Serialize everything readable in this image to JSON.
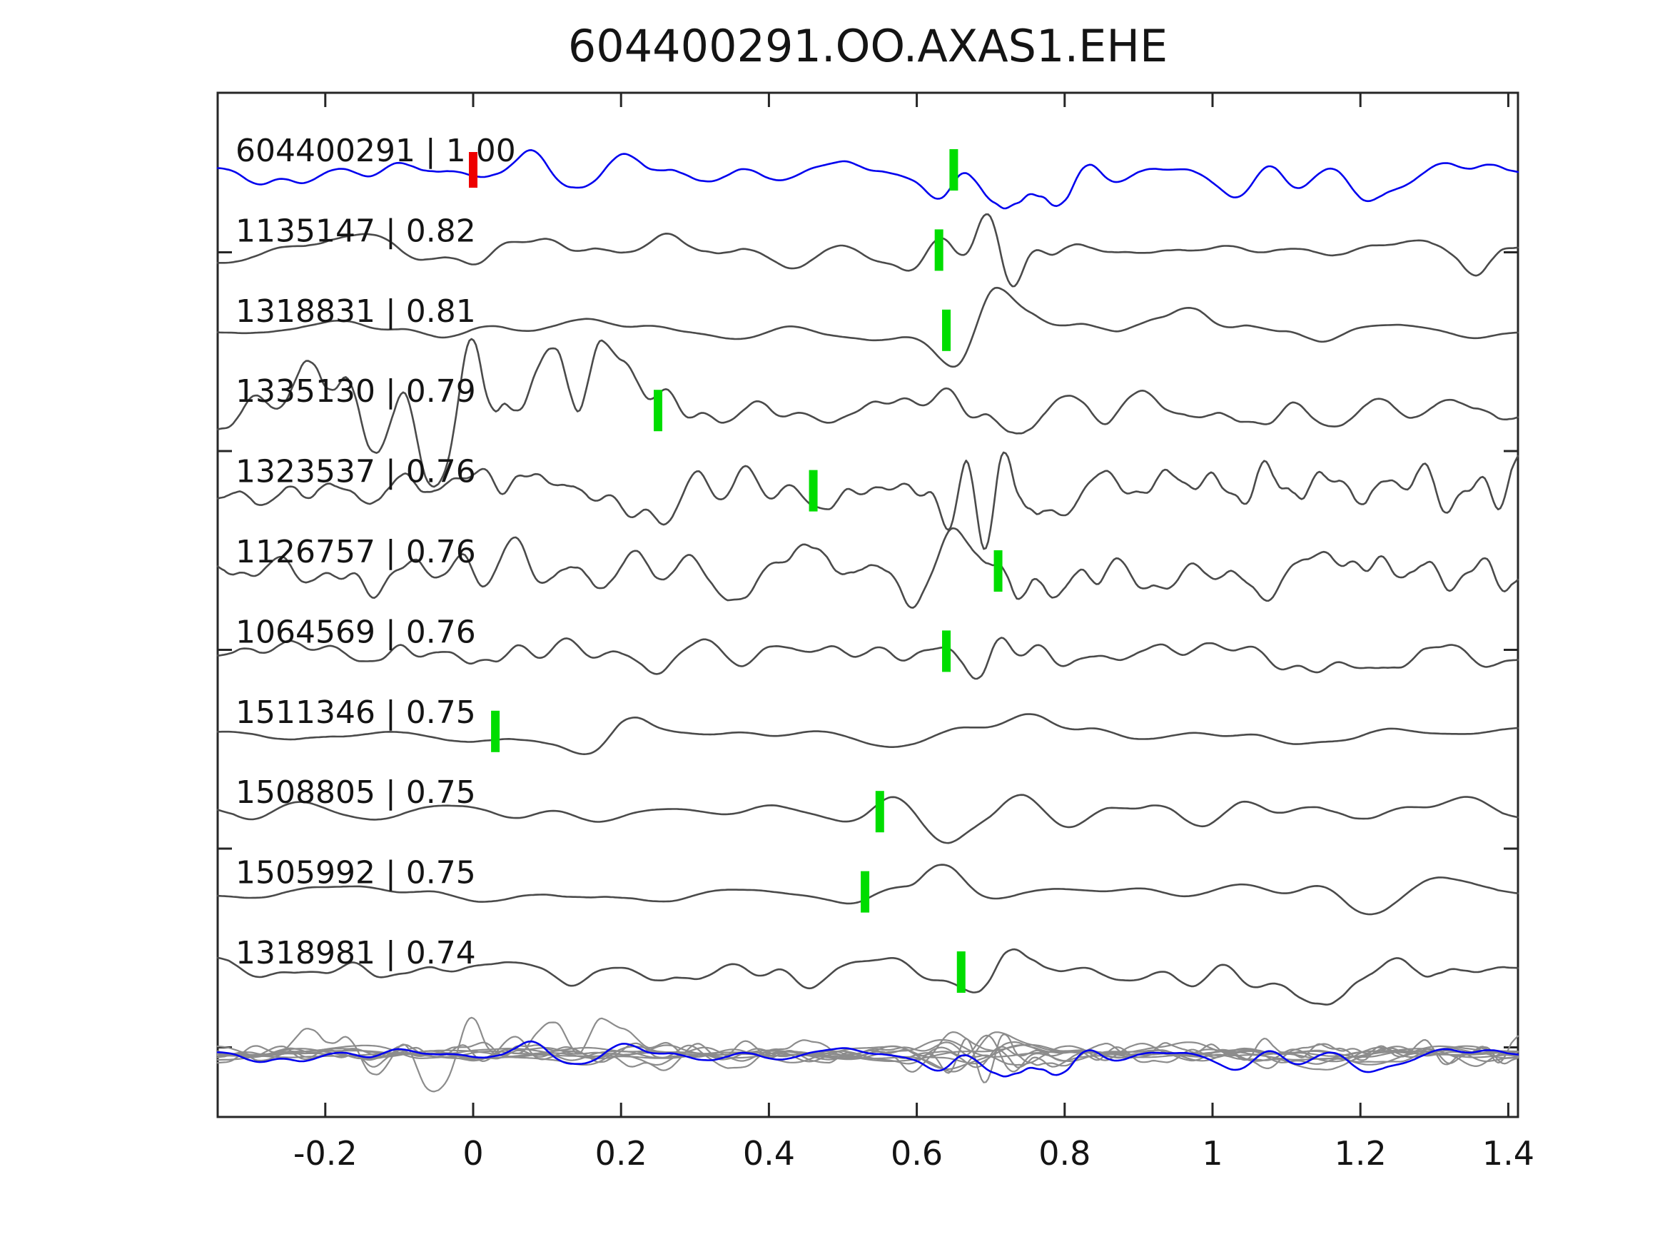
{
  "figure": {
    "title": "604400291.OO.AXAS1.EHE"
  },
  "chart_data": {
    "type": "line",
    "title": "604400291.OO.AXAS1.EHE",
    "xlabel": "",
    "ylabel": "",
    "xlim": [
      -0.345,
      1.413
    ],
    "grid": false,
    "legend": "none",
    "xticks": [
      {
        "value": -0.2,
        "label": "-0.2"
      },
      {
        "value": 0.0,
        "label": "0"
      },
      {
        "value": 0.2,
        "label": "0.2"
      },
      {
        "value": 0.4,
        "label": "0.4"
      },
      {
        "value": 0.6,
        "label": "0.6"
      },
      {
        "value": 0.8,
        "label": "0.8"
      },
      {
        "value": 1.0,
        "label": "1"
      },
      {
        "value": 1.2,
        "label": "1.2"
      },
      {
        "value": 1.4,
        "label": "1.4"
      }
    ],
    "colors": {
      "reference_trace": "#0202ee",
      "match_trace": "#4a4a4a",
      "overlay_trace": "#8c8c8c",
      "pick_marker": "#00dd00",
      "reference_marker": "#ee0000",
      "axis": "#262626",
      "text": "#141414"
    },
    "traces": [
      {
        "id": "604400291",
        "similarity": "1.00",
        "label": "604400291 | 1.00",
        "role": "reference",
        "color": "#0202ee",
        "markers": [
          {
            "time": 0.0,
            "color": "#ee0000",
            "kind": "reference"
          },
          {
            "time": 0.65,
            "color": "#00dd00",
            "kind": "pick"
          }
        ],
        "render": {
          "seed": 101,
          "base": 15,
          "smooth": 5,
          "events": [
            {
              "t": 0.1,
              "a": 8,
              "w": 0.15
            },
            {
              "t": 0.66,
              "a": 20,
              "w": 0.04
            },
            {
              "t": 0.76,
              "a": 52,
              "w": 0.05
            },
            {
              "t": 1.05,
              "a": 10,
              "w": 0.1
            },
            {
              "t": 1.22,
              "a": 16,
              "w": 0.04
            }
          ]
        }
      },
      {
        "id": "1135147",
        "similarity": "0.82",
        "label": "1135147 | 0.82",
        "role": "match",
        "color": "#4a4a4a",
        "markers": [
          {
            "time": 0.63,
            "color": "#00dd00",
            "kind": "pick"
          }
        ],
        "render": {
          "seed": 202,
          "base": 16,
          "smooth": 5,
          "events": [
            {
              "t": 0.63,
              "a": 18,
              "w": 0.04
            },
            {
              "t": 0.71,
              "a": 50,
              "w": 0.045
            },
            {
              "t": 1.36,
              "a": 26,
              "w": 0.05
            }
          ]
        }
      },
      {
        "id": "1318831",
        "similarity": "0.81",
        "label": "1318831 | 0.81",
        "role": "match",
        "color": "#4a4a4a",
        "markers": [
          {
            "time": 0.64,
            "color": "#00dd00",
            "kind": "pick"
          }
        ],
        "render": {
          "seed": 303,
          "base": 13,
          "smooth": 7,
          "events": [
            {
              "t": 0.72,
              "a": 58,
              "w": 0.05
            },
            {
              "t": 1.0,
              "a": 14,
              "w": 0.1
            }
          ]
        }
      },
      {
        "id": "1335130",
        "similarity": "0.79",
        "label": "1335130 | 0.79",
        "role": "match",
        "color": "#4a4a4a",
        "markers": [
          {
            "time": 0.25,
            "color": "#00dd00",
            "kind": "pick"
          }
        ],
        "render": {
          "seed": 404,
          "base": 20,
          "smooth": 4,
          "events": [
            {
              "t": -0.15,
              "a": 55,
              "w": 0.22
            },
            {
              "t": 0.1,
              "a": 42,
              "w": 0.1
            },
            {
              "t": 0.72,
              "a": 28,
              "w": 0.045
            }
          ]
        }
      },
      {
        "id": "1323537",
        "similarity": "0.76",
        "label": "1323537 | 0.76",
        "role": "match",
        "color": "#4a4a4a",
        "markers": [
          {
            "time": 0.46,
            "color": "#00dd00",
            "kind": "pick"
          }
        ],
        "render": {
          "seed": 505,
          "base": 26,
          "smooth": 3,
          "events": [
            {
              "t": 0.7,
              "a": 38,
              "w": 0.05
            },
            {
              "t": 1.15,
              "a": 12,
              "w": 0.15
            }
          ]
        }
      },
      {
        "id": "1126757",
        "similarity": "0.76",
        "label": "1126757 | 0.76",
        "role": "match",
        "color": "#4a4a4a",
        "markers": [
          {
            "time": 0.71,
            "color": "#00dd00",
            "kind": "pick"
          }
        ],
        "render": {
          "seed": 606,
          "base": 30,
          "smooth": 3,
          "events": [
            {
              "t": 0.74,
              "a": 32,
              "w": 0.05
            }
          ]
        }
      },
      {
        "id": "1064569",
        "similarity": "0.76",
        "label": "1064569 | 0.76",
        "role": "match",
        "color": "#4a4a4a",
        "markers": [
          {
            "time": 0.64,
            "color": "#00dd00",
            "kind": "pick"
          }
        ],
        "render": {
          "seed": 707,
          "base": 18,
          "smooth": 4,
          "events": [
            {
              "t": 0.675,
              "a": 52,
              "w": 0.035
            }
          ]
        }
      },
      {
        "id": "1511346",
        "similarity": "0.75",
        "label": "1511346 | 0.75",
        "role": "match",
        "color": "#4a4a4a",
        "markers": [
          {
            "time": 0.03,
            "color": "#00dd00",
            "kind": "pick"
          }
        ],
        "render": {
          "seed": 808,
          "base": 12,
          "smooth": 8,
          "events": [
            {
              "t": 0.2,
              "a": 58,
              "w": 0.04
            },
            {
              "t": 0.78,
              "a": 8,
              "w": 0.1
            }
          ]
        }
      },
      {
        "id": "1508805",
        "similarity": "0.75",
        "label": "1508805 | 0.75",
        "role": "match",
        "color": "#4a4a4a",
        "markers": [
          {
            "time": 0.55,
            "color": "#00dd00",
            "kind": "pick"
          }
        ],
        "render": {
          "seed": 909,
          "base": 10,
          "smooth": 7,
          "events": [
            {
              "t": 0.64,
              "a": 52,
              "w": 0.06
            },
            {
              "t": 1.05,
              "a": 16,
              "w": 0.2
            }
          ]
        }
      },
      {
        "id": "1505992",
        "similarity": "0.75",
        "label": "1505992 | 0.75",
        "role": "match",
        "color": "#4a4a4a",
        "markers": [
          {
            "time": 0.53,
            "color": "#00dd00",
            "kind": "pick"
          }
        ],
        "render": {
          "seed": 1010,
          "base": 10,
          "smooth": 9,
          "events": [
            {
              "t": 0.61,
              "a": 55,
              "w": 0.05
            },
            {
              "t": 1.25,
              "a": 12,
              "w": 0.1
            }
          ]
        }
      },
      {
        "id": "1318981",
        "similarity": "0.74",
        "label": "1318981 | 0.74",
        "role": "match",
        "color": "#4a4a4a",
        "markers": [
          {
            "time": 0.66,
            "color": "#00dd00",
            "kind": "pick"
          }
        ],
        "render": {
          "seed": 1111,
          "base": 16,
          "smooth": 5,
          "events": [
            {
              "t": 0.72,
              "a": 48,
              "w": 0.04
            },
            {
              "t": 1.2,
              "a": 12,
              "w": 0.15
            }
          ]
        }
      }
    ],
    "overlay_row": {
      "description": "all traces overlaid at bottom, matches in gray with reference in blue on top",
      "gray_color": "#8c8c8c",
      "blue_color": "#0202ee",
      "scale": 0.5
    }
  }
}
